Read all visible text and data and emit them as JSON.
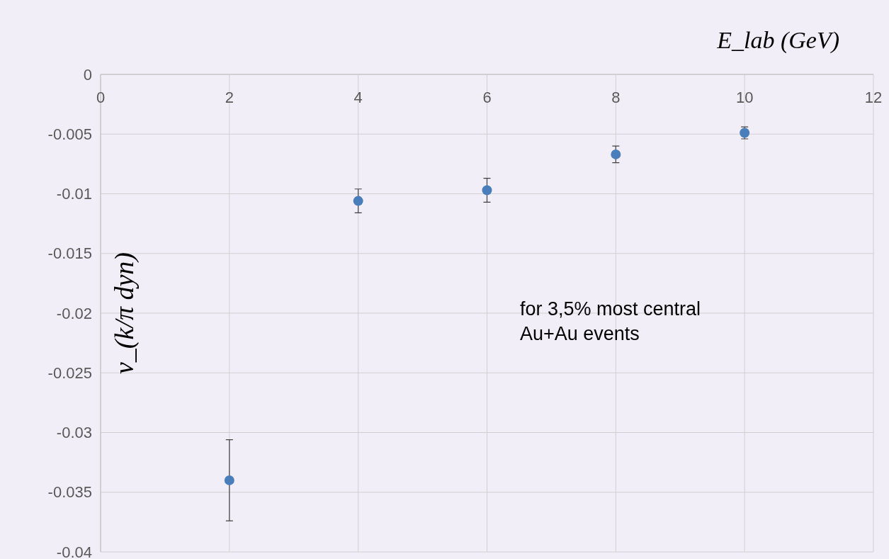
{
  "chart_data": {
    "type": "scatter",
    "xlabel": "E_lab (GeV)",
    "ylabel": "ν_(k/π dyn)",
    "x": [
      2,
      4,
      6,
      8,
      10
    ],
    "values": [
      -0.034,
      -0.0106,
      -0.0097,
      -0.0067,
      -0.0049
    ],
    "errors": [
      0.0034,
      0.001,
      0.001,
      0.0007,
      0.0005
    ],
    "color": "#4a7ebb",
    "marker": "circle",
    "xlim": [
      0,
      12
    ],
    "xticks": [
      0,
      2,
      4,
      6,
      8,
      10,
      12
    ],
    "ylim": [
      -0.04,
      0
    ],
    "yticks": [
      -0.04,
      -0.035,
      -0.03,
      -0.025,
      -0.02,
      -0.015,
      -0.01,
      -0.005,
      0
    ],
    "grid": true,
    "annotations": [
      "for 3,5% most central\nAu+Au events"
    ]
  }
}
